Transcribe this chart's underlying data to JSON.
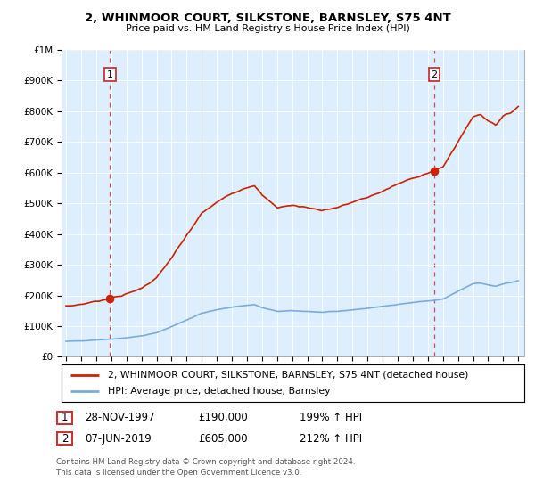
{
  "title": "2, WHINMOOR COURT, SILKSTONE, BARNSLEY, S75 4NT",
  "subtitle": "Price paid vs. HM Land Registry's House Price Index (HPI)",
  "legend_line1": "2, WHINMOOR COURT, SILKSTONE, BARNSLEY, S75 4NT (detached house)",
  "legend_line2": "HPI: Average price, detached house, Barnsley",
  "sale1_date": "28-NOV-1997",
  "sale1_price": "£190,000",
  "sale1_hpi": "199% ↑ HPI",
  "sale2_date": "07-JUN-2019",
  "sale2_price": "£605,000",
  "sale2_hpi": "212% ↑ HPI",
  "footnote": "Contains HM Land Registry data © Crown copyright and database right 2024.\nThis data is licensed under the Open Government Licence v3.0.",
  "hpi_color": "#7aaddb",
  "price_color": "#cc2200",
  "marker_color": "#cc2200",
  "vline_color": "#cc3333",
  "chart_bg": "#ddeeff",
  "background_color": "#ffffff",
  "ylim_min": 0,
  "ylim_max": 1000000,
  "sale1_year": 1997.92,
  "sale1_price_val": 190000,
  "sale2_year": 2019.42,
  "sale2_price_val": 605000
}
